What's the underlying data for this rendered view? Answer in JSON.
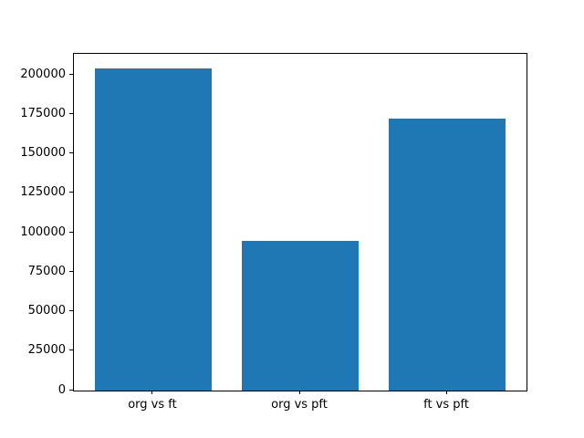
{
  "chart_data": {
    "type": "bar",
    "categories": [
      "org vs ft",
      "org vs pft",
      "ft vs pft"
    ],
    "values": [
      204000,
      95000,
      172500
    ],
    "title": "",
    "xlabel": "",
    "ylabel": "",
    "ylim": [
      0,
      213500
    ],
    "xlim": [
      -0.54,
      2.54
    ],
    "yticks": [
      0,
      25000,
      50000,
      75000,
      100000,
      125000,
      150000,
      175000,
      200000
    ],
    "bar_width": 0.8,
    "bar_color": "#1f77b4",
    "grid": false,
    "legend": null,
    "background_color": "#ffffff",
    "spine_color": "#000000",
    "text_color": "#000000"
  }
}
